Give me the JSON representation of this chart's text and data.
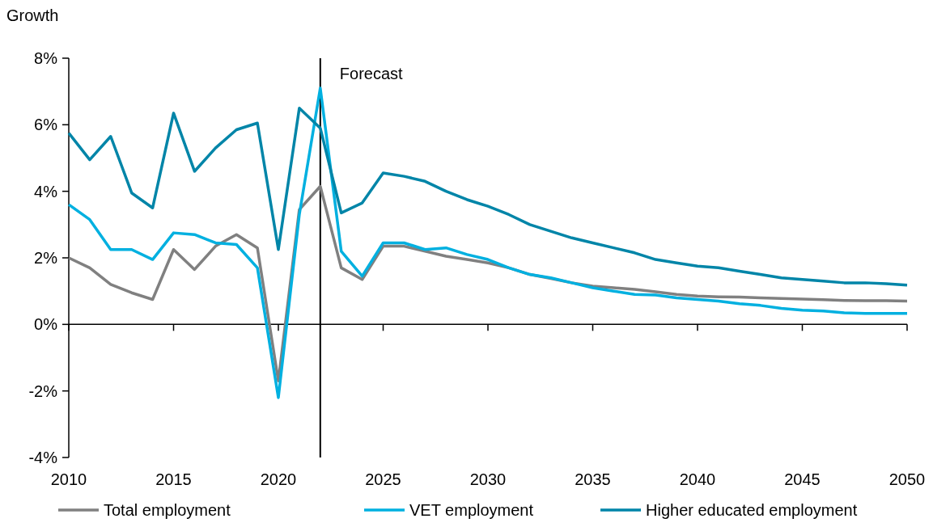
{
  "chart_data": {
    "type": "line",
    "ylabel": "Growth",
    "x": [
      2010,
      2011,
      2012,
      2013,
      2014,
      2015,
      2016,
      2017,
      2018,
      2019,
      2020,
      2021,
      2022,
      2023,
      2024,
      2025,
      2026,
      2027,
      2028,
      2029,
      2030,
      2031,
      2032,
      2033,
      2034,
      2035,
      2036,
      2037,
      2038,
      2039,
      2040,
      2041,
      2042,
      2043,
      2044,
      2045,
      2046,
      2047,
      2048,
      2049,
      2050
    ],
    "series": [
      {
        "name": "Total employment",
        "color": "#808080",
        "values": [
          2.0,
          1.7,
          1.2,
          0.95,
          0.75,
          2.25,
          1.65,
          2.35,
          2.7,
          2.3,
          -1.7,
          3.45,
          4.15,
          1.7,
          1.35,
          2.35,
          2.35,
          2.2,
          2.05,
          1.95,
          1.85,
          1.7,
          1.5,
          1.38,
          1.25,
          1.15,
          1.1,
          1.05,
          0.98,
          0.9,
          0.85,
          0.83,
          0.82,
          0.8,
          0.78,
          0.76,
          0.74,
          0.72,
          0.71,
          0.71,
          0.7
        ]
      },
      {
        "name": "VET employment",
        "color": "#00b0e0",
        "values": [
          3.6,
          3.15,
          2.25,
          2.25,
          1.95,
          2.75,
          2.7,
          2.45,
          2.4,
          1.7,
          -2.2,
          3.3,
          7.1,
          2.2,
          1.45,
          2.45,
          2.45,
          2.25,
          2.3,
          2.1,
          1.95,
          1.7,
          1.5,
          1.4,
          1.25,
          1.1,
          1.0,
          0.9,
          0.88,
          0.8,
          0.75,
          0.7,
          0.62,
          0.57,
          0.48,
          0.43,
          0.4,
          0.35,
          0.33,
          0.33,
          0.33
        ]
      },
      {
        "name": "Higher educated employment",
        "color": "#0085a8",
        "values": [
          5.75,
          4.95,
          5.65,
          3.95,
          3.5,
          6.35,
          4.6,
          5.3,
          5.85,
          6.05,
          2.25,
          6.5,
          5.9,
          3.35,
          3.65,
          4.55,
          4.45,
          4.3,
          4.0,
          3.75,
          3.55,
          3.3,
          3.0,
          2.8,
          2.6,
          2.45,
          2.3,
          2.15,
          1.95,
          1.85,
          1.75,
          1.7,
          1.6,
          1.5,
          1.4,
          1.35,
          1.3,
          1.25,
          1.25,
          1.22,
          1.18
        ]
      }
    ],
    "xlim": [
      2010,
      2050
    ],
    "xticks": [
      2010,
      2015,
      2020,
      2025,
      2030,
      2035,
      2040,
      2045,
      2050
    ],
    "ylim": [
      -4,
      8
    ],
    "yticks": [
      {
        "value": -4,
        "label": "-4%"
      },
      {
        "value": -2,
        "label": "-2%"
      },
      {
        "value": 0,
        "label": "0%"
      },
      {
        "value": 2,
        "label": "2%"
      },
      {
        "value": 4,
        "label": "4%"
      },
      {
        "value": 6,
        "label": "6%"
      },
      {
        "value": 8,
        "label": "8%"
      }
    ],
    "ref_lines": [
      {
        "axis": "x",
        "value": 2022,
        "label": "Forecast",
        "color": "#000000"
      }
    ],
    "legend": "bottom"
  }
}
